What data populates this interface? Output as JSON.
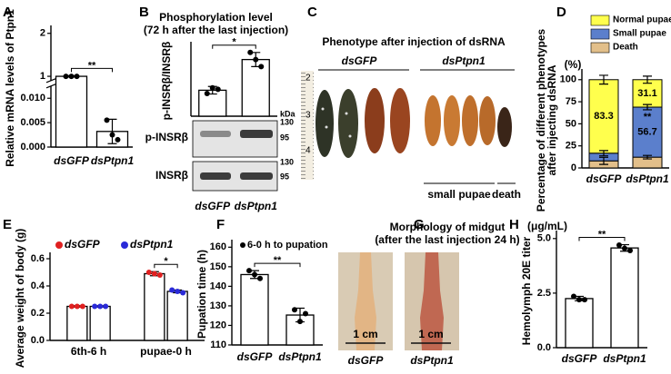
{
  "panels": [
    "A",
    "B",
    "C",
    "D",
    "E",
    "F",
    "G",
    "H"
  ],
  "chart_data": [
    {
      "type": "bar",
      "ylabel": "Relative mRNA levels of Ptpn1",
      "categories": [
        "dsGFP",
        "dsPtpn1"
      ],
      "series": [
        {
          "color": "#000000",
          "values": [
            1.0,
            0.0032
          ],
          "errors": [
            0.015,
            0.0025
          ],
          "points": [
            [
              1.0,
              1.0,
              1.0
            ],
            [
              0.0055,
              0.0025,
              0.0015
            ]
          ]
        }
      ],
      "ylim": [
        0,
        2.1
      ],
      "ybreak": [
        0.0125,
        0.9
      ],
      "yticks": [
        {
          "value": 0,
          "label": "0.000"
        },
        {
          "value": 0.005,
          "label": "0.005"
        },
        {
          "value": 0.01,
          "label": "0.010"
        },
        1,
        2
      ],
      "significance": "**"
    },
    {
      "type": "bar",
      "title": [
        "Phosphorylation level",
        "(72 h after the last injection)"
      ],
      "ylabel": "p-INSRβ/INSRβ",
      "categories": [
        "dsGFP",
        "dsPtpn1"
      ],
      "series": [
        {
          "color": "#000000",
          "values": [
            0.55,
            1.2
          ],
          "errors": [
            0.08,
            0.15
          ],
          "points": [
            [
              0.48,
              0.6,
              0.57
            ],
            [
              1.35,
              1.2,
              1.05
            ]
          ]
        }
      ],
      "ylim": [
        0,
        1.5
      ],
      "significance": "*"
    },
    {
      "type": "stacked_bar",
      "ylabel": [
        "Percentage of different phenotypes",
        "after injecting dsRNA"
      ],
      "yunit": "(%)",
      "categories": [
        "dsGFP",
        "dsPtpn1"
      ],
      "series": [
        {
          "name": "Death",
          "color": "#e2bf8a",
          "values": [
            8,
            12.2
          ],
          "errors": [
            4,
            2
          ]
        },
        {
          "name": "Small pupae",
          "color": "#5b7fcc",
          "values": [
            8.7,
            56.7
          ],
          "value_labels": [
            null,
            "56.7"
          ],
          "errors": [
            3,
            3
          ]
        },
        {
          "name": "Normal pupae",
          "color": "#ffff4d",
          "values": [
            83.3,
            31.1
          ],
          "value_labels": [
            "83.3",
            "31.1"
          ],
          "errors": [
            5,
            4
          ]
        }
      ],
      "ylim": [
        0,
        108
      ],
      "yticks": [
        0,
        25,
        50,
        75,
        100
      ],
      "significance": "**"
    },
    {
      "type": "grouped_bar",
      "ylabel": "Average weight of body (g)",
      "categories": [
        "6th-6 h",
        "pupae-0 h"
      ],
      "series": [
        {
          "name": "dsGFP",
          "color": "#e02020",
          "values": [
            0.25,
            0.49
          ],
          "errors": [
            0.005,
            0.015
          ],
          "points": [
            [
              0.25,
              0.25,
              0.25
            ],
            [
              0.5,
              0.49,
              0.48
            ]
          ]
        },
        {
          "name": "dsPtpn1",
          "color": "#2a2ad8",
          "values": [
            0.25,
            0.36
          ],
          "errors": [
            0.005,
            0.01
          ],
          "points": [
            [
              0.25,
              0.25,
              0.25
            ],
            [
              0.37,
              0.36,
              0.35
            ]
          ]
        }
      ],
      "ylim": [
        0,
        0.62
      ],
      "yticks": [
        {
          "value": 0,
          "label": "0.0"
        },
        {
          "value": 0.2,
          "label": "0.2"
        },
        {
          "value": 0.4,
          "label": "0.4"
        },
        {
          "value": 0.6,
          "label": "0.6"
        }
      ],
      "significance": "*"
    },
    {
      "type": "bar",
      "ylabel": "Pupation time (h)",
      "categories": [
        "dsGFP",
        "dsPtpn1"
      ],
      "series": [
        {
          "name": "6-0 h to pupation",
          "color": "#000000",
          "values": [
            146,
            125.3
          ],
          "errors": [
            2,
            3.5
          ],
          "points": [
            [
              148,
              146,
              144
            ],
            [
              128,
              122,
              126
            ]
          ]
        }
      ],
      "ylim": [
        110,
        162
      ],
      "yticks": [
        110,
        120,
        130,
        140,
        150,
        160
      ],
      "significance": "**"
    },
    {
      "type": "bar",
      "ylabel": "Hemolymph 20E titer",
      "yunit": "(μg/mL)",
      "categories": [
        "dsGFP",
        "dsPtpn1"
      ],
      "series": [
        {
          "color": "#000000",
          "values": [
            2.25,
            4.57
          ],
          "errors": [
            0.1,
            0.15
          ],
          "points": [
            [
              2.35,
              2.2,
              2.2
            ],
            [
              4.7,
              4.55,
              4.45
            ]
          ]
        }
      ],
      "ylim": [
        0,
        5.2
      ],
      "yticks": [
        {
          "value": 0,
          "label": "0.0"
        },
        {
          "value": 2.5,
          "label": "2.5"
        },
        {
          "value": 5,
          "label": "5.0"
        }
      ],
      "significance": "**"
    }
  ],
  "blot": {
    "rows": [
      "p-INSRβ",
      "INSRβ"
    ],
    "unit": "kDa",
    "markers": [
      "130",
      "95",
      "130",
      "95"
    ]
  },
  "phenotype_photo": {
    "title": "Phenotype after injection of dsRNA",
    "groups": [
      "dsGFP",
      "dsPtpn1"
    ],
    "notes": [
      "small pupae",
      "death"
    ],
    "ruler": [
      "2",
      "3",
      "4"
    ]
  },
  "midgut_photo": {
    "title": [
      "Morphology of midgut",
      "(after the last injection 24 h)"
    ],
    "scale_bars": [
      "1 cm",
      "1 cm"
    ],
    "labels": [
      "dsGFP",
      "dsPtpn1"
    ]
  }
}
